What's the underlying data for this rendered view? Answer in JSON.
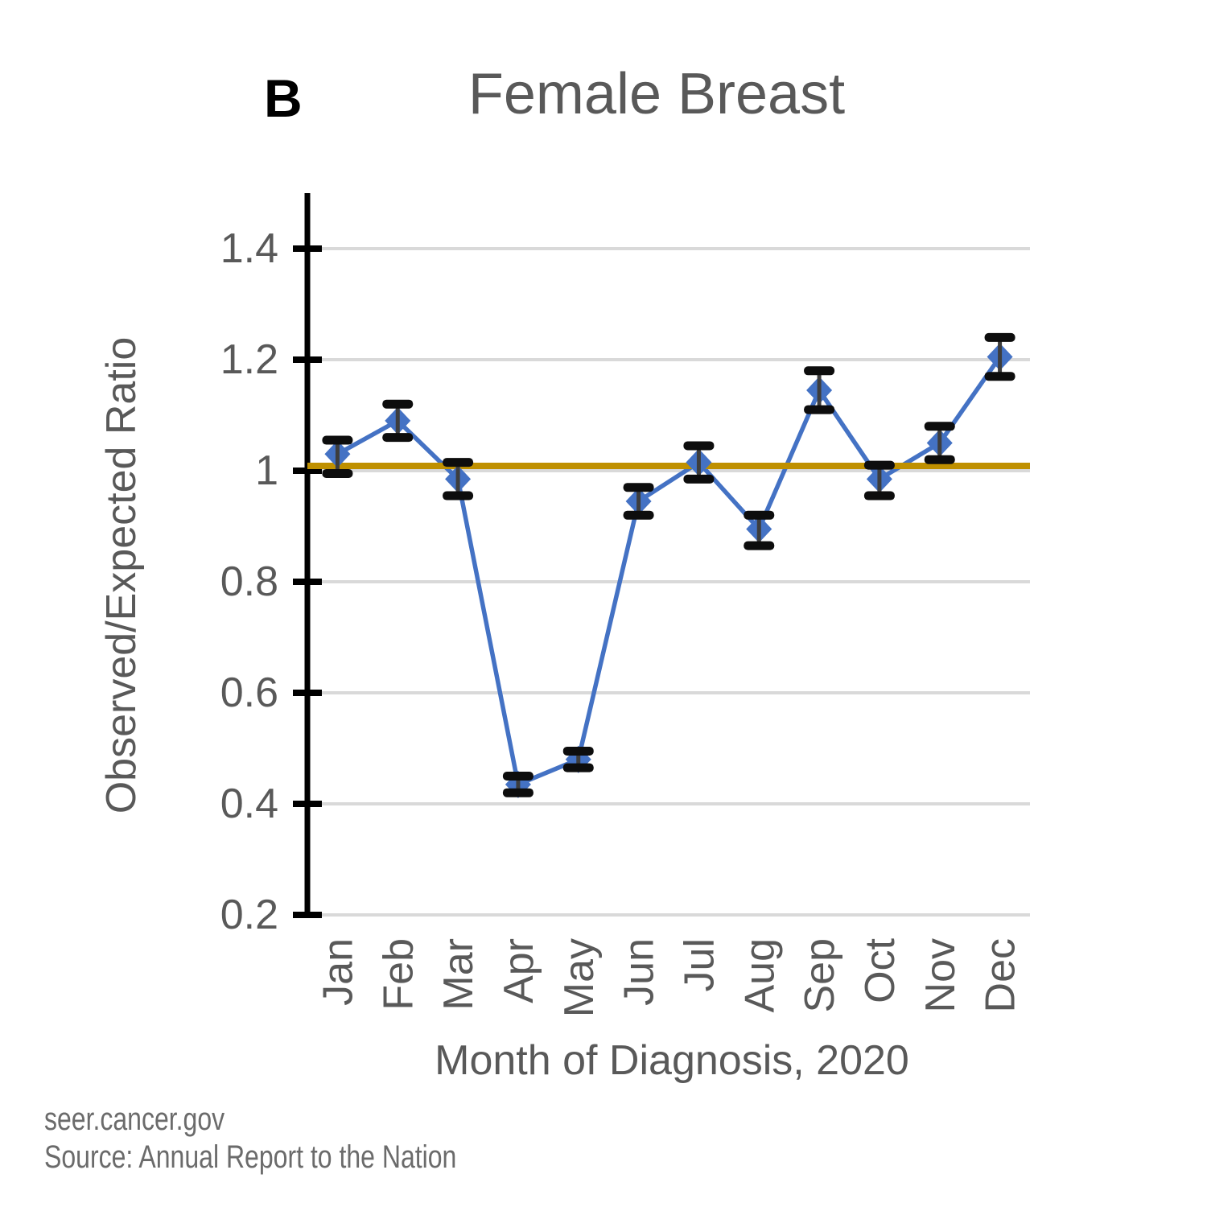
{
  "panel_label": "B",
  "footer": {
    "line1": "seer.cancer.gov",
    "line2": "Source: Annual Report to the Nation"
  },
  "chart_data": {
    "type": "line",
    "title": "Female Breast",
    "xlabel": "Month of Diagnosis, 2020",
    "ylabel": "Observed/Expected Ratio",
    "categories": [
      "Jan",
      "Feb",
      "Mar",
      "Apr",
      "May",
      "Jun",
      "Jul",
      "Aug",
      "Sep",
      "Oct",
      "Nov",
      "Dec"
    ],
    "series": [
      {
        "name": "Observed/Expected Ratio",
        "values": [
          1.03,
          1.09,
          0.985,
          0.435,
          0.48,
          0.945,
          1.015,
          0.895,
          1.145,
          0.985,
          1.05,
          1.205
        ],
        "error_low": [
          0.995,
          1.06,
          0.955,
          0.42,
          0.465,
          0.92,
          0.985,
          0.865,
          1.11,
          0.955,
          1.02,
          1.17
        ],
        "error_high": [
          1.055,
          1.12,
          1.015,
          0.45,
          0.495,
          0.97,
          1.045,
          0.92,
          1.18,
          1.01,
          1.08,
          1.24
        ]
      }
    ],
    "reference_line": {
      "value": 1.0,
      "color": "#BF9000"
    },
    "yticks": [
      0.2,
      0.4,
      0.6,
      0.8,
      1,
      1.2,
      1.4
    ],
    "ylim": [
      0.2,
      1.5
    ],
    "grid": true,
    "legend": "none",
    "marker": "diamond",
    "colors": {
      "series": "#4472C4",
      "marker": "#4472C4",
      "error_bar": "#0d0d0d",
      "error_line": "#3d3d3d",
      "grid": "#D9D9D9",
      "axis": "#000000",
      "text": "#595959",
      "title": "#595959",
      "footer": "#6b6b6b"
    }
  }
}
